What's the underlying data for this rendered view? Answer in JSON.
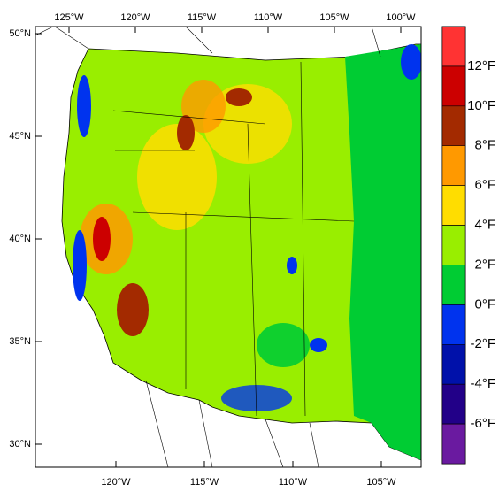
{
  "map": {
    "lat_ticks": [
      {
        "value": 50,
        "label": "50°N"
      },
      {
        "value": 45,
        "label": "45°N"
      },
      {
        "value": 40,
        "label": "40°N"
      },
      {
        "value": 35,
        "label": "35°N"
      },
      {
        "value": 30,
        "label": "30°N"
      }
    ],
    "lon_ticks_top": [
      {
        "value": -125,
        "label": "125°W"
      },
      {
        "value": -120,
        "label": "120°W"
      },
      {
        "value": -115,
        "label": "115°W"
      },
      {
        "value": -110,
        "label": "110°W"
      },
      {
        "value": -105,
        "label": "105°W"
      },
      {
        "value": -100,
        "label": "100°W"
      }
    ],
    "lon_ticks_bottom": [
      {
        "value": -120,
        "label": "120°W"
      },
      {
        "value": -115,
        "label": "115°W"
      },
      {
        "value": -110,
        "label": "110°W"
      },
      {
        "value": -105,
        "label": "105°W"
      }
    ]
  },
  "legend": {
    "colors": [
      "#ff3333",
      "#cc0000",
      "#a32a00",
      "#ff9900",
      "#ffdd00",
      "#99ee00",
      "#00cc33",
      "#0033ee",
      "#0011aa",
      "#220088",
      "#6a1aa0"
    ],
    "boundaries": [
      {
        "value": 12,
        "label": "12°F"
      },
      {
        "value": 10,
        "label": "10°F"
      },
      {
        "value": 8,
        "label": "8°F"
      },
      {
        "value": 6,
        "label": "6°F"
      },
      {
        "value": 4,
        "label": "4°F"
      },
      {
        "value": 2,
        "label": "2°F"
      },
      {
        "value": 0,
        "label": "0°F"
      },
      {
        "value": -2,
        "label": "-2°F"
      },
      {
        "value": -4,
        "label": "-4°F"
      },
      {
        "value": -6,
        "label": "-6°F"
      }
    ]
  }
}
